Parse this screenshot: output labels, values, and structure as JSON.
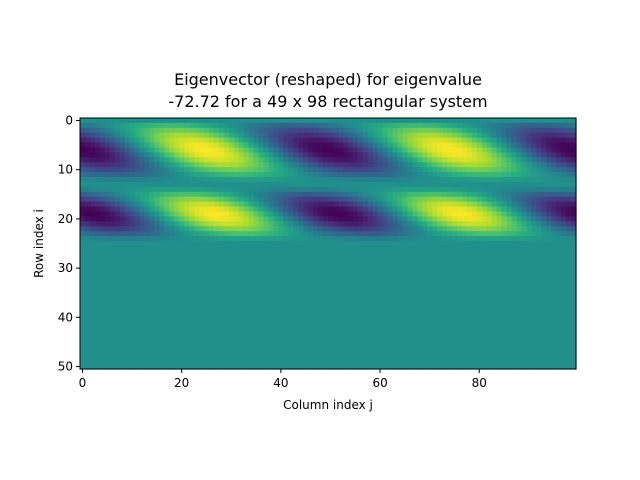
{
  "title_line1": "Eigenvector (reshaped) for eigenvalue",
  "title_line2": "-72.72 for a 49 x 98 rectangular system",
  "chart_data": {
    "type": "heatmap",
    "colormap": "viridis",
    "xlabel": "Column index j",
    "ylabel": "Row index i",
    "xlim": [
      -0.5,
      99.5
    ],
    "ylim": [
      50.5,
      -0.5
    ],
    "x_ticks": [
      0,
      20,
      40,
      60,
      80
    ],
    "y_ticks": [
      0,
      10,
      20,
      30,
      40,
      50
    ],
    "n_rows": 51,
    "n_cols": 100,
    "active_rows": [
      1,
      24
    ],
    "background_value": 0.0,
    "value_range": [
      -1.0,
      1.0
    ],
    "pattern": {
      "row_bands": [
        {
          "center_row": 6,
          "extent": [
            1,
            12
          ]
        },
        {
          "center_row": 19,
          "extent": [
            14,
            24
          ]
        }
      ],
      "minima_columns_top_band": [
        0,
        50,
        98
      ],
      "maxima_columns_top_band": [
        24,
        74
      ],
      "minima_columns_bottom_band": [
        2,
        48,
        96
      ],
      "maxima_columns_bottom_band": [
        26,
        76
      ],
      "diagonal_tilt": "down-right"
    }
  }
}
